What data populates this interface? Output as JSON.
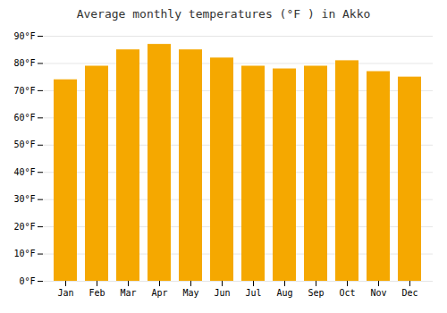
{
  "chart_data": {
    "type": "bar",
    "title": "Average monthly temperatures (°F ) in Akko",
    "categories": [
      "Jan",
      "Feb",
      "Mar",
      "Apr",
      "May",
      "Jun",
      "Jul",
      "Aug",
      "Sep",
      "Oct",
      "Nov",
      "Dec"
    ],
    "values": [
      74,
      79,
      85,
      87,
      85,
      82,
      79,
      78,
      79,
      81,
      77,
      75
    ],
    "color": "#F5A800",
    "ylim": [
      0,
      90
    ],
    "yticks": [
      {
        "value": 0,
        "label": "0°F"
      },
      {
        "value": 10,
        "label": "10°F"
      },
      {
        "value": 20,
        "label": "20°F"
      },
      {
        "value": 30,
        "label": "30°F"
      },
      {
        "value": 40,
        "label": "40°F"
      },
      {
        "value": 50,
        "label": "50°F"
      },
      {
        "value": 60,
        "label": "60°F"
      },
      {
        "value": 70,
        "label": "70°F"
      },
      {
        "value": 80,
        "label": "80°F"
      },
      {
        "value": 90,
        "label": "90°F"
      }
    ],
    "grid": true
  }
}
